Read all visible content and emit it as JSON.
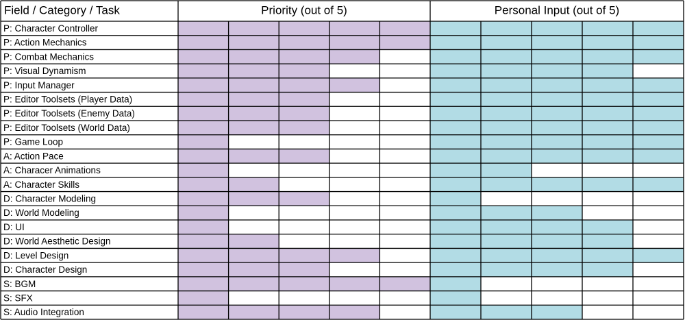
{
  "table": {
    "headers": [
      "Field / Category / Task",
      "Priority (out of 5)",
      "Personal Input (out of 5)"
    ],
    "max": 5,
    "colors": {
      "priority": "#d1c2df",
      "personal": "#b2dce5"
    },
    "rows": [
      {
        "task": "P: Character Controller",
        "priority": 5,
        "personal": 5
      },
      {
        "task": "P: Action Mechanics",
        "priority": 5,
        "personal": 5
      },
      {
        "task": "P: Combat Mechanics",
        "priority": 4,
        "personal": 5
      },
      {
        "task": "P: Visual Dynamism",
        "priority": 3,
        "personal": 4
      },
      {
        "task": "P: Input Manager",
        "priority": 4,
        "personal": 5
      },
      {
        "task": "P: Editor Toolsets (Player Data)",
        "priority": 3,
        "personal": 5
      },
      {
        "task": "P: Editor Toolsets (Enemy Data)",
        "priority": 3,
        "personal": 5
      },
      {
        "task": "P: Editor Toolsets (World Data)",
        "priority": 3,
        "personal": 5
      },
      {
        "task": "P: Game Loop",
        "priority": 1,
        "personal": 5
      },
      {
        "task": "A: Action Pace",
        "priority": 3,
        "personal": 5
      },
      {
        "task": "A: Characer Animations",
        "priority": 1,
        "personal": 2
      },
      {
        "task": "A: Character Skills",
        "priority": 2,
        "personal": 5
      },
      {
        "task": "D: Character Modeling",
        "priority": 3,
        "personal": 1
      },
      {
        "task": "D: World Modeling",
        "priority": 1,
        "personal": 3
      },
      {
        "task": "D: UI",
        "priority": 1,
        "personal": 4
      },
      {
        "task": "D: World Aesthetic Design",
        "priority": 2,
        "personal": 4
      },
      {
        "task": "D: Level Design",
        "priority": 4,
        "personal": 5
      },
      {
        "task": "D: Character Design",
        "priority": 3,
        "personal": 4
      },
      {
        "task": "S: BGM",
        "priority": 5,
        "personal": 1
      },
      {
        "task": "S: SFX",
        "priority": 1,
        "personal": 1
      },
      {
        "task": "S: Audio Integration",
        "priority": 4,
        "personal": 3
      }
    ]
  }
}
